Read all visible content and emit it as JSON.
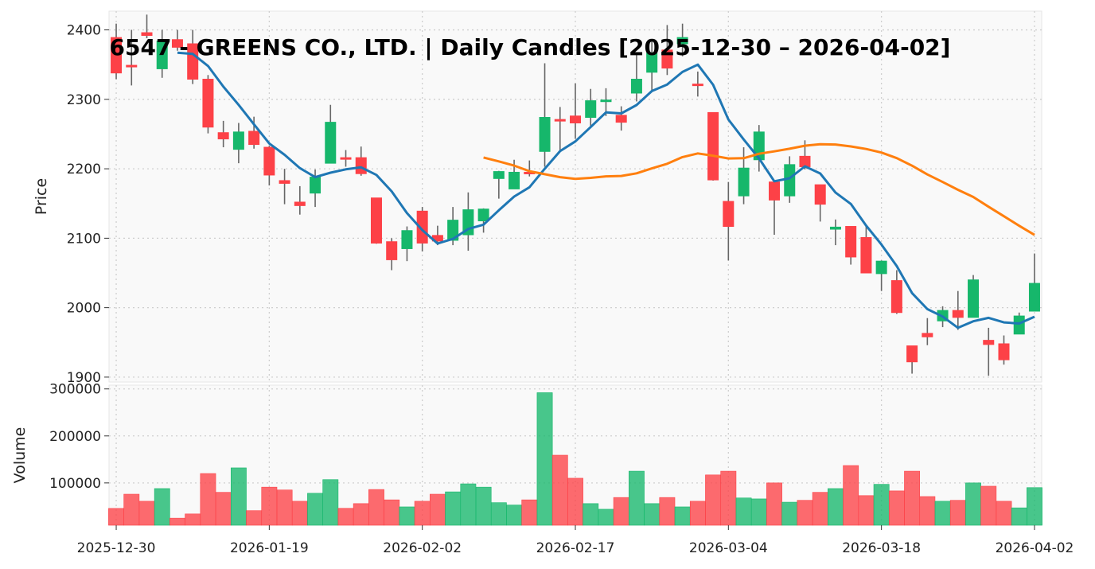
{
  "chart_data": {
    "type": "candlestick",
    "title": "6547 - GREENS CO., LTD. | Daily Candles [2025-12-30 – 2026-04-02]",
    "price_panel": {
      "ylabel": "Price",
      "ylim": [
        1893,
        2427
      ],
      "yticks": [
        1900,
        2000,
        2100,
        2200,
        2300,
        2400
      ],
      "grid": true
    },
    "volume_panel": {
      "ylabel": "Volume",
      "ylim": [
        10000,
        308000
      ],
      "yticks": [
        100000,
        200000,
        300000
      ],
      "grid": true
    },
    "xtick_labels": [
      {
        "index": 0,
        "label": "2025-12-30"
      },
      {
        "index": 10,
        "label": "2026-01-19"
      },
      {
        "index": 20,
        "label": "2026-02-02"
      },
      {
        "index": 30,
        "label": "2026-02-17"
      },
      {
        "index": 40,
        "label": "2026-03-04"
      },
      {
        "index": 50,
        "label": "2026-03-18"
      },
      {
        "index": 60,
        "label": "2026-04-02"
      }
    ],
    "colors": {
      "up": "#16b76b",
      "down": "#fd4147",
      "ma_short": "#1f77b4",
      "ma_long": "#ff7f0e",
      "wick": "#666666"
    },
    "moving_averages": [
      {
        "period": 5,
        "color": "#1f77b4"
      },
      {
        "period": 25,
        "color": "#ff7f0e"
      }
    ],
    "dates": [
      "2025-12-30",
      "2026-01-05",
      "2026-01-06",
      "2026-01-07",
      "2026-01-08",
      "2026-01-09",
      "2026-01-13",
      "2026-01-14",
      "2026-01-15",
      "2026-01-16",
      "2026-01-19",
      "2026-01-20",
      "2026-01-21",
      "2026-01-22",
      "2026-01-23",
      "2026-01-26",
      "2026-01-27",
      "2026-01-28",
      "2026-01-29",
      "2026-01-30",
      "2026-02-02",
      "2026-02-03",
      "2026-02-04",
      "2026-02-05",
      "2026-02-06",
      "2026-02-09",
      "2026-02-10",
      "2026-02-12",
      "2026-02-13",
      "2026-02-16",
      "2026-02-17",
      "2026-02-18",
      "2026-02-19",
      "2026-02-20",
      "2026-02-24",
      "2026-02-25",
      "2026-02-26",
      "2026-02-27",
      "2026-03-02",
      "2026-03-03",
      "2026-03-04",
      "2026-03-05",
      "2026-03-06",
      "2026-03-09",
      "2026-03-10",
      "2026-03-11",
      "2026-03-12",
      "2026-03-13",
      "2026-03-16",
      "2026-03-17",
      "2026-03-18",
      "2026-03-19",
      "2026-03-23",
      "2026-03-24",
      "2026-03-25",
      "2026-03-26",
      "2026-03-27",
      "2026-03-30",
      "2026-03-31",
      "2026-04-01",
      "2026-04-02"
    ],
    "ohlc": [
      [
        2389,
        2409,
        2329,
        2338
      ],
      [
        2349,
        2400,
        2320,
        2347
      ],
      [
        2396,
        2422,
        2388,
        2392
      ],
      [
        2344,
        2400,
        2331,
        2384
      ],
      [
        2386,
        2400,
        2370,
        2375
      ],
      [
        2380,
        2400,
        2322,
        2329
      ],
      [
        2329,
        2335,
        2251,
        2260
      ],
      [
        2252,
        2269,
        2231,
        2243
      ],
      [
        2228,
        2266,
        2208,
        2253
      ],
      [
        2254,
        2275,
        2229,
        2235
      ],
      [
        2231,
        2233,
        2176,
        2191
      ],
      [
        2183,
        2200,
        2149,
        2179
      ],
      [
        2152,
        2175,
        2134,
        2147
      ],
      [
        2165,
        2199,
        2145,
        2188
      ],
      [
        2208,
        2292,
        2208,
        2267
      ],
      [
        2216,
        2227,
        2203,
        2215
      ],
      [
        2216,
        2232,
        2190,
        2193
      ],
      [
        2158,
        2158,
        2092,
        2093
      ],
      [
        2095,
        2100,
        2054,
        2069
      ],
      [
        2085,
        2117,
        2067,
        2111
      ],
      [
        2139,
        2145,
        2081,
        2093
      ],
      [
        2104,
        2118,
        2090,
        2096
      ],
      [
        2097,
        2145,
        2090,
        2126
      ],
      [
        2105,
        2166,
        2082,
        2141
      ],
      [
        2125,
        2143,
        2108,
        2142
      ],
      [
        2186,
        2197,
        2157,
        2196
      ],
      [
        2171,
        2213,
        2171,
        2195
      ],
      [
        2195,
        2212,
        2189,
        2193
      ],
      [
        2225,
        2352,
        2203,
        2274
      ],
      [
        2271,
        2289,
        2226,
        2269
      ],
      [
        2276,
        2323,
        2243,
        2266
      ],
      [
        2274,
        2315,
        2261,
        2298
      ],
      [
        2297,
        2316,
        2276,
        2299
      ],
      [
        2277,
        2290,
        2255,
        2267
      ],
      [
        2309,
        2366,
        2297,
        2329
      ],
      [
        2339,
        2386,
        2313,
        2367
      ],
      [
        2371,
        2407,
        2335,
        2345
      ],
      [
        2380,
        2409,
        2362,
        2389
      ],
      [
        2322,
        2340,
        2304,
        2320
      ],
      [
        2281,
        2281,
        2183,
        2184
      ],
      [
        2153,
        2181,
        2068,
        2117
      ],
      [
        2161,
        2231,
        2149,
        2201
      ],
      [
        2213,
        2263,
        2196,
        2253
      ],
      [
        2181,
        2181,
        2105,
        2155
      ],
      [
        2161,
        2218,
        2151,
        2206
      ],
      [
        2218,
        2241,
        2199,
        2203
      ],
      [
        2177,
        2177,
        2124,
        2149
      ],
      [
        2113,
        2127,
        2090,
        2116
      ],
      [
        2117,
        2117,
        2062,
        2073
      ],
      [
        2101,
        2117,
        2050,
        2050
      ],
      [
        2049,
        2068,
        2024,
        2067
      ],
      [
        2039,
        2054,
        1991,
        1993
      ],
      [
        1945,
        1945,
        1905,
        1922
      ],
      [
        1963,
        1985,
        1946,
        1958
      ],
      [
        1981,
        2002,
        1972,
        1996
      ],
      [
        1996,
        2024,
        1968,
        1986
      ],
      [
        1986,
        2047,
        1986,
        2040
      ],
      [
        1953,
        1971,
        1902,
        1947
      ],
      [
        1948,
        1960,
        1918,
        1925
      ],
      [
        1962,
        1993,
        1962,
        1988
      ],
      [
        1995,
        2078,
        1995,
        2035
      ]
    ],
    "volume": [
      45800,
      76000,
      61000,
      88000,
      25000,
      34000,
      120000,
      80000,
      132000,
      41000,
      91000,
      85000,
      61000,
      78000,
      107000,
      46000,
      56000,
      86000,
      64000,
      49000,
      61000,
      76000,
      81000,
      98000,
      91000,
      58000,
      53000,
      64000,
      292000,
      159000,
      110000,
      56000,
      44000,
      69000,
      125000,
      56000,
      69000,
      49000,
      61000,
      117000,
      125000,
      68000,
      66000,
      100000,
      59000,
      63000,
      80000,
      88000,
      137000,
      73000,
      97000,
      83000,
      125000,
      71000,
      61000,
      63000,
      100000,
      93000,
      61000,
      47000,
      90000
    ]
  }
}
